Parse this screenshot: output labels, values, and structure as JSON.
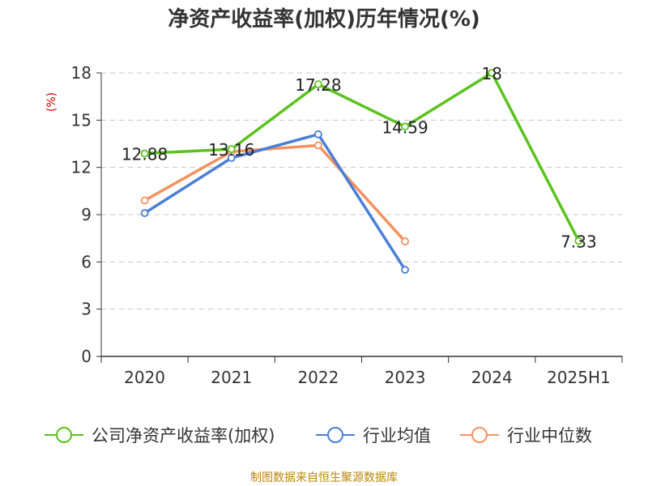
{
  "chart_data": {
    "type": "line",
    "title": "净资产收益率(加权)历年情况(%)",
    "ylabel": "(%)",
    "categories": [
      "2020",
      "2021",
      "2022",
      "2023",
      "2024",
      "2025H1"
    ],
    "ylim": [
      0,
      18
    ],
    "yticks": [
      0,
      3,
      6,
      9,
      12,
      15,
      18
    ],
    "grid": true,
    "legend_position": "bottom",
    "series": [
      {
        "name": "公司净资产收益率(加权)",
        "color": "#5bc21e",
        "values": [
          12.88,
          13.16,
          17.28,
          14.59,
          18,
          7.33
        ],
        "labels": [
          "12.88",
          "13.16",
          "17.28",
          "14.59",
          "18",
          "7.33"
        ]
      },
      {
        "name": "行业均值",
        "color": "#4a7fd6",
        "values": [
          9.1,
          12.6,
          14.1,
          5.5,
          null,
          null
        ]
      },
      {
        "name": "行业中位数",
        "color": "#f5915e",
        "values": [
          9.9,
          13.0,
          13.4,
          7.3,
          null,
          null
        ]
      }
    ],
    "source": "制图数据来自恒生聚源数据库"
  }
}
